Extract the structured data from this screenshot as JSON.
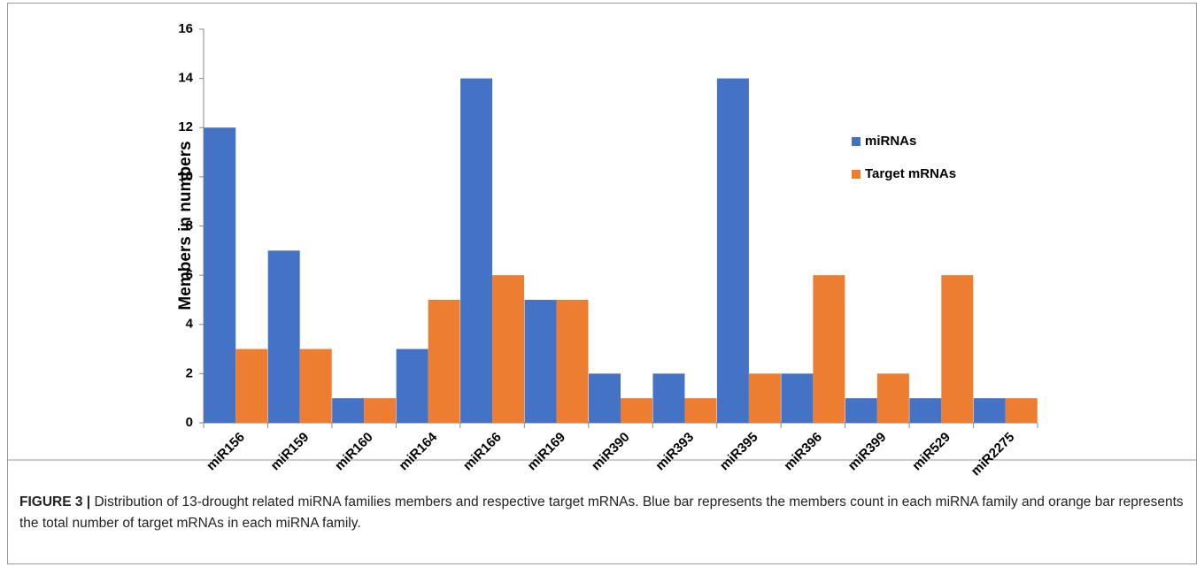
{
  "chart_data": {
    "type": "bar",
    "y_label": "Members in numbers",
    "categories": [
      "miR156",
      "miR159",
      "miR160",
      "miR164",
      "miR166",
      "miR169",
      "miR390",
      "miR393",
      "miR395",
      "miR396",
      "miR399",
      "miR529",
      "miR2275"
    ],
    "series": [
      {
        "name": "miRNAs",
        "color": "#4472c4",
        "values": [
          12,
          7,
          1,
          3,
          14,
          5,
          2,
          2,
          14,
          2,
          1,
          1,
          1
        ]
      },
      {
        "name": "Target mRNAs",
        "color": "#ed7d31",
        "values": [
          3,
          3,
          1,
          5,
          6,
          5,
          1,
          1,
          2,
          6,
          2,
          6,
          1
        ]
      }
    ],
    "ylim": [
      0,
      16
    ],
    "yticks": [
      0,
      2,
      4,
      6,
      8,
      10,
      12,
      14,
      16
    ],
    "grid": false,
    "legend": "upper right"
  },
  "caption": {
    "label": "FIGURE 3 |",
    "text": "Distribution of 13-drought related miRNA families members and respective target mRNAs. Blue bar represents the members count in each miRNA family and orange bar represents the total number of target mRNAs in each miRNA family."
  }
}
